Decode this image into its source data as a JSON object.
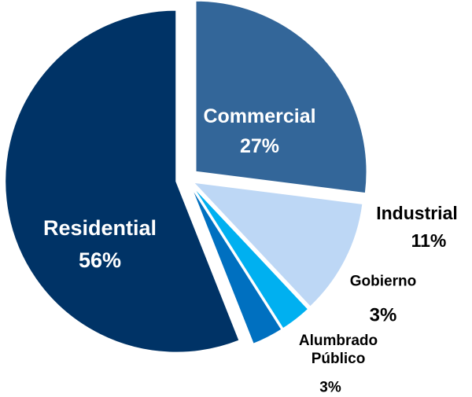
{
  "chart_data": {
    "type": "pie",
    "categories": [
      "Commercial",
      "Industrial",
      "Gobierno",
      "Alumbrado Público",
      "Residential"
    ],
    "values": [
      27,
      11,
      3,
      3,
      56
    ],
    "value_labels": [
      "27%",
      "11%",
      "3%",
      "3%",
      "56%"
    ],
    "colors": [
      "#336699",
      "#bdd7f5",
      "#00b0f0",
      "#0070c0",
      "#003366"
    ]
  }
}
